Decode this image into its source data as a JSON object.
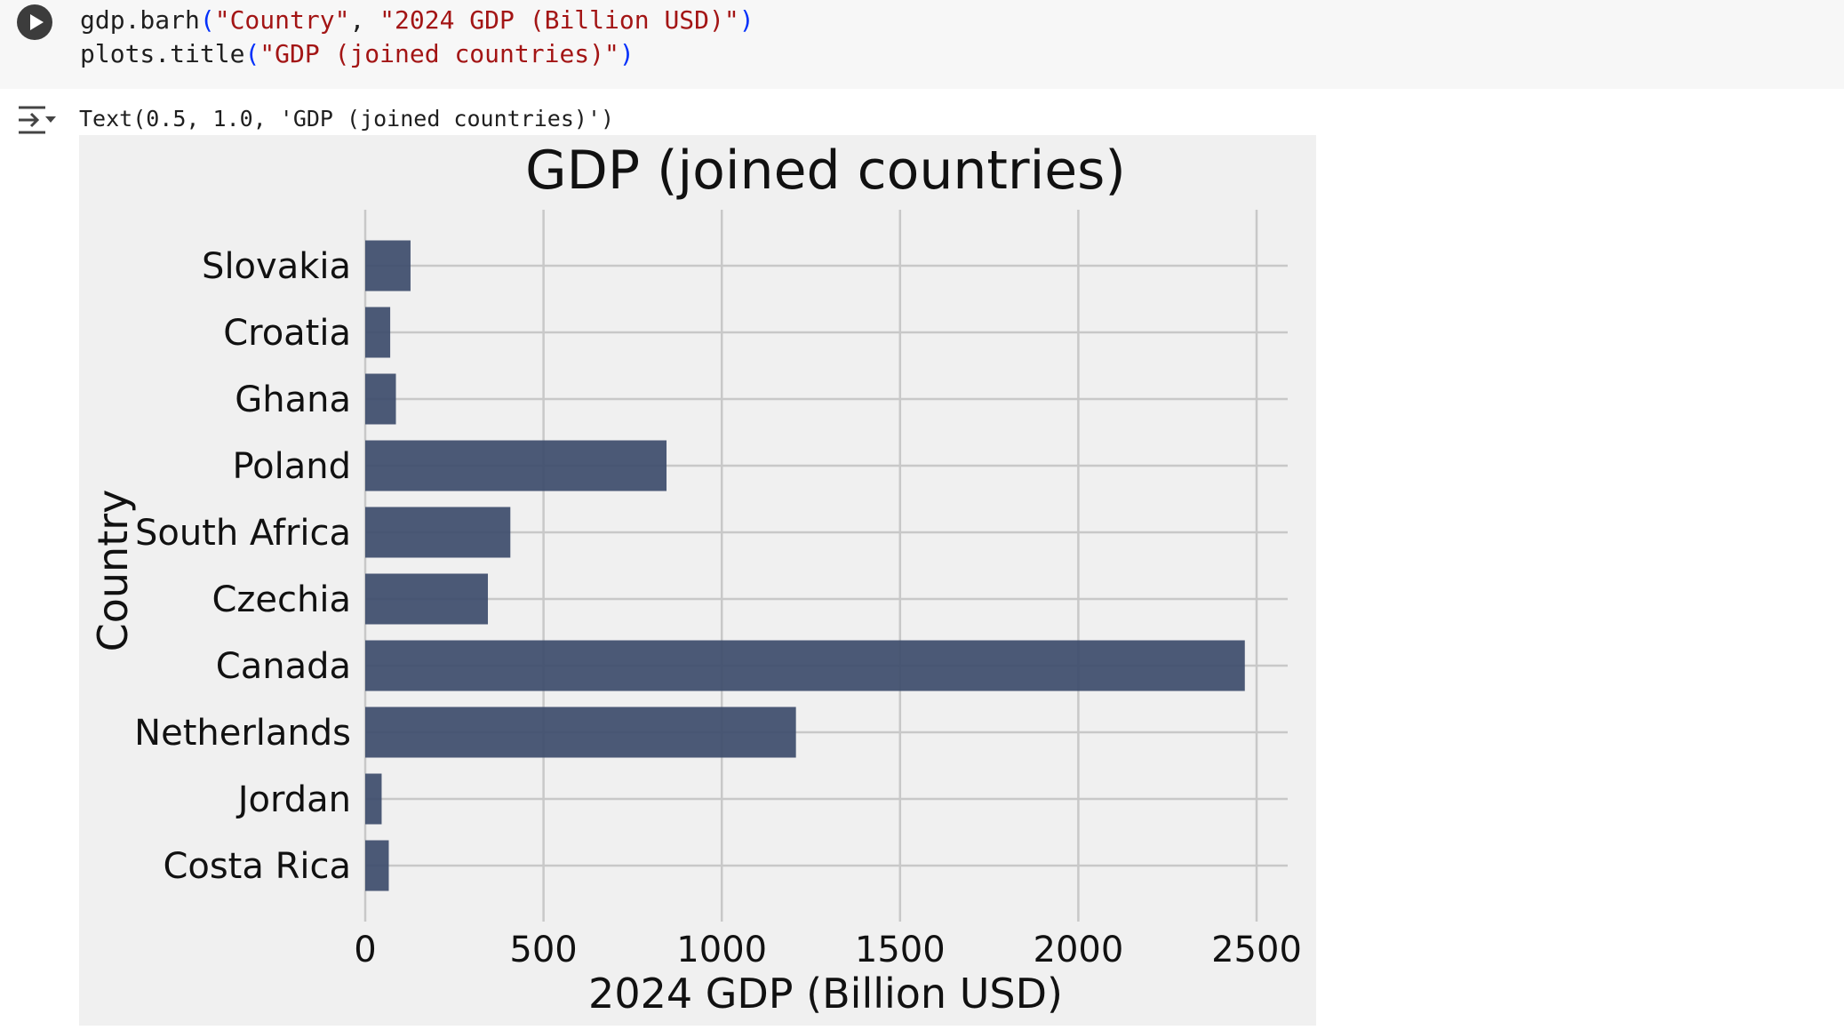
{
  "cell": {
    "code_line1": {
      "fn": "gdp.barh",
      "open": "(",
      "arg1": "\"Country\"",
      "sep": ", ",
      "arg2": "\"2024 GDP (Billion USD)\"",
      "close": ")"
    },
    "code_line2": {
      "fn": "plots.title",
      "open": "(",
      "arg1": "\"GDP (joined countries)\"",
      "close": ")"
    },
    "output_text": "Text(0.5, 1.0, 'GDP (joined countries)')"
  },
  "icons": {
    "run": "play-icon",
    "output": "output-toggle-icon"
  },
  "colors": {
    "bar": "#3d4c6b",
    "plot_bg": "#f0f0f0",
    "grid": "#c8c8c8"
  },
  "chart_data": {
    "type": "bar",
    "orientation": "horizontal",
    "title": "GDP (joined countries)",
    "xlabel": "2024 GDP (Billion USD)",
    "ylabel": "Country",
    "categories": [
      "Slovakia",
      "Croatia",
      "Ghana",
      "Poland",
      "South Africa",
      "Czechia",
      "Canada",
      "Netherlands",
      "Jordan",
      "Costa Rica"
    ],
    "values": [
      127,
      70,
      86,
      845,
      407,
      344,
      2467,
      1208,
      46,
      66
    ],
    "xlim": [
      0,
      2600
    ],
    "xticks": [
      "0",
      "500",
      "1000",
      "1500",
      "2000",
      "2500"
    ],
    "xtick_values": [
      0,
      500,
      1000,
      1500,
      2000,
      2500
    ],
    "grid": true
  }
}
